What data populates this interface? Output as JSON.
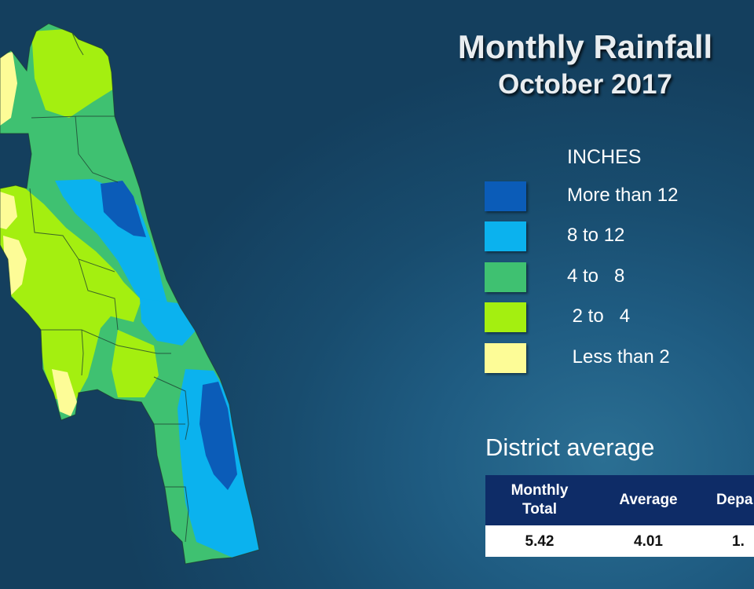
{
  "title": "Monthly Rainfall",
  "subtitle": "October 2017",
  "legend": {
    "heading": "INCHES",
    "items": [
      {
        "label": "More than 12",
        "color": "#0b5cb8"
      },
      {
        "label": "8 to 12",
        "color": "#0bb2ee"
      },
      {
        "label": "4 to   8",
        "color": "#3fc171"
      },
      {
        "label": " 2 to   4",
        "color": "#a4ef10"
      },
      {
        "label": " Less than 2",
        "color": "#fdfc97"
      }
    ]
  },
  "district": {
    "heading": "District average",
    "columns": [
      "Monthly Total",
      "Average",
      "Depa"
    ],
    "values": [
      "5.42",
      "4.01",
      "1."
    ]
  }
}
